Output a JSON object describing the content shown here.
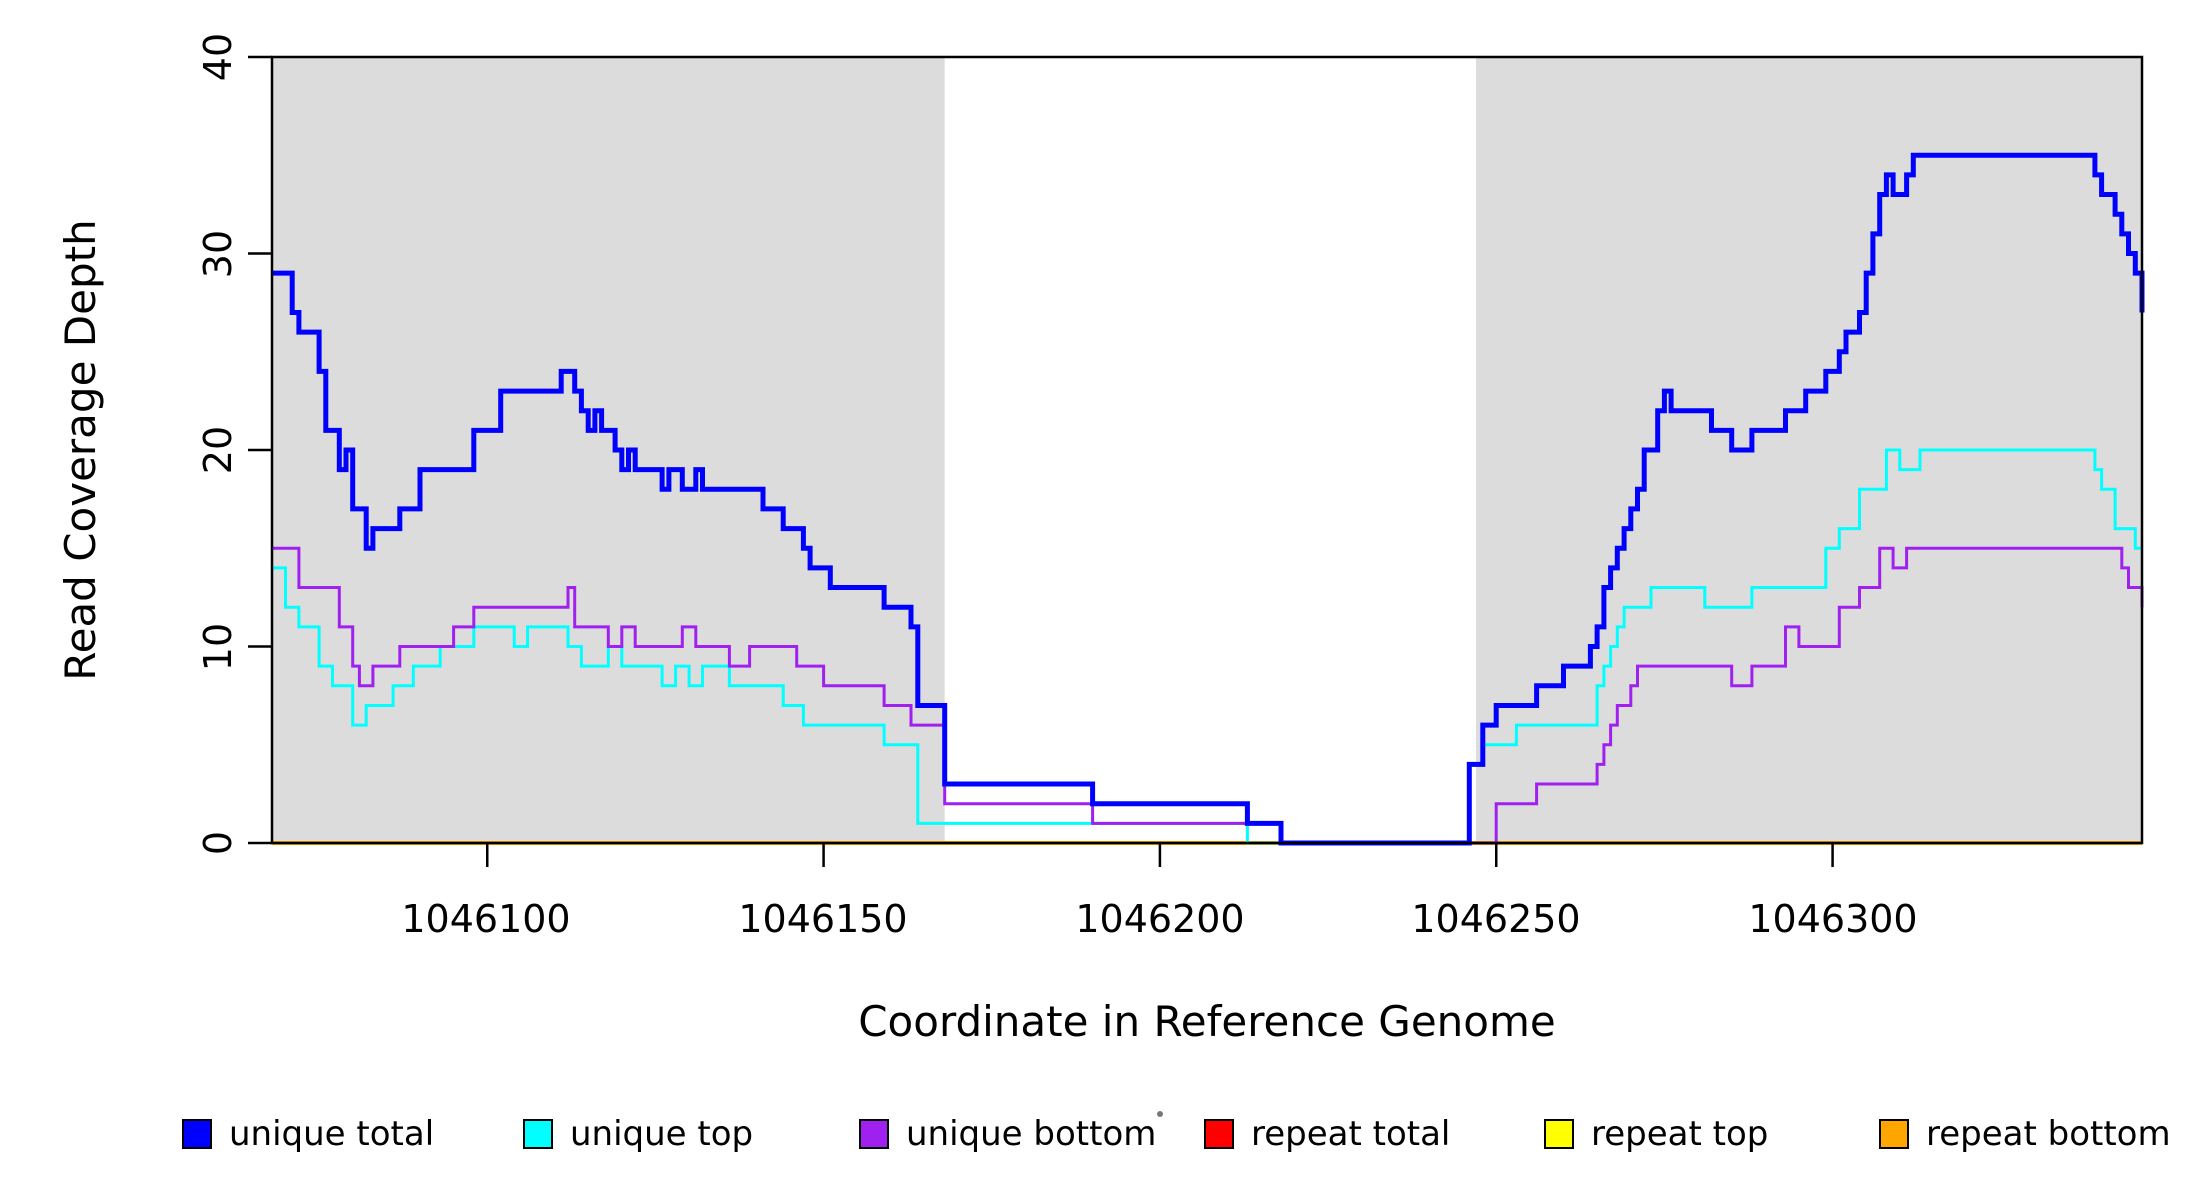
{
  "figure": {
    "y_axis": {
      "label": "Read Coverage Depth",
      "tick_labels": [
        "0",
        "10",
        "20",
        "30",
        "40"
      ],
      "tick_values": [
        0,
        10,
        20,
        30,
        40
      ],
      "range": [
        0,
        40
      ]
    },
    "x_axis": {
      "label": "Coordinate in Reference Genome",
      "tick_labels": [
        "1046100",
        "1046150",
        "1046200",
        "1046250",
        "1046300"
      ],
      "tick_values": [
        1046100,
        1046150,
        1046200,
        1046250,
        1046300
      ],
      "range": [
        1046068,
        1046346
      ]
    },
    "shaded_regions": [
      {
        "from": 1046068,
        "to": 1046168
      },
      {
        "from": 1046247,
        "to": 1046346
      }
    ],
    "shade_color": "#DCDCDC",
    "box_color": "#000000",
    "background_color": "#FFFFFF"
  },
  "legend": {
    "items": [
      {
        "label": "unique total",
        "color": "#0000FF"
      },
      {
        "label": "unique top",
        "color": "#00FFFF"
      },
      {
        "label": "unique bottom",
        "color": "#A020F0"
      },
      {
        "label": "repeat total",
        "color": "#FF0000"
      },
      {
        "label": "repeat top",
        "color": "#FFFF00"
      },
      {
        "label": "repeat bottom",
        "color": "#FFA500"
      }
    ]
  },
  "chart_data": {
    "type": "line",
    "subtype": "step-after",
    "title": "",
    "xlabel": "Coordinate in Reference Genome",
    "ylabel": "Read Coverage Depth",
    "xlim": [
      1046068,
      1046346
    ],
    "ylim": [
      0,
      40
    ],
    "grid": false,
    "legend_position": "bottom",
    "series": [
      {
        "name": "repeat total",
        "color": "#FF0000",
        "width": 4,
        "points": [
          [
            1046068,
            0
          ],
          [
            1046346,
            0
          ]
        ]
      },
      {
        "name": "repeat top",
        "color": "#FFFF00",
        "width": 4,
        "points": [
          [
            1046068,
            0
          ],
          [
            1046346,
            0
          ]
        ]
      },
      {
        "name": "repeat bottom",
        "color": "#FFA500",
        "width": 4,
        "points": [
          [
            1046068,
            0
          ],
          [
            1046346,
            0
          ]
        ]
      },
      {
        "name": "unique top",
        "color": "#00FFFF",
        "width": 3,
        "points": [
          [
            1046068,
            14
          ],
          [
            1046070,
            12
          ],
          [
            1046072,
            11
          ],
          [
            1046075,
            9
          ],
          [
            1046077,
            8
          ],
          [
            1046080,
            6
          ],
          [
            1046082,
            7
          ],
          [
            1046086,
            8
          ],
          [
            1046089,
            9
          ],
          [
            1046093,
            10
          ],
          [
            1046098,
            11
          ],
          [
            1046104,
            10
          ],
          [
            1046106,
            11
          ],
          [
            1046112,
            10
          ],
          [
            1046114,
            9
          ],
          [
            1046118,
            10
          ],
          [
            1046120,
            9
          ],
          [
            1046126,
            8
          ],
          [
            1046128,
            9
          ],
          [
            1046130,
            8
          ],
          [
            1046132,
            9
          ],
          [
            1046136,
            8
          ],
          [
            1046144,
            7
          ],
          [
            1046147,
            6
          ],
          [
            1046159,
            5
          ],
          [
            1046164,
            1
          ],
          [
            1046213,
            0
          ],
          [
            1046246,
            4
          ],
          [
            1046248,
            5
          ],
          [
            1046253,
            6
          ],
          [
            1046265,
            8
          ],
          [
            1046266,
            9
          ],
          [
            1046267,
            10
          ],
          [
            1046268,
            11
          ],
          [
            1046269,
            12
          ],
          [
            1046273,
            13
          ],
          [
            1046281,
            12
          ],
          [
            1046288,
            13
          ],
          [
            1046299,
            15
          ],
          [
            1046301,
            16
          ],
          [
            1046304,
            18
          ],
          [
            1046308,
            20
          ],
          [
            1046310,
            19
          ],
          [
            1046313,
            20
          ],
          [
            1046339,
            19
          ],
          [
            1046340,
            18
          ],
          [
            1046342,
            16
          ],
          [
            1046345,
            15
          ],
          [
            1046346,
            15
          ]
        ]
      },
      {
        "name": "unique bottom",
        "color": "#A020F0",
        "width": 3,
        "points": [
          [
            1046068,
            15
          ],
          [
            1046072,
            13
          ],
          [
            1046078,
            11
          ],
          [
            1046080,
            9
          ],
          [
            1046081,
            8
          ],
          [
            1046083,
            9
          ],
          [
            1046087,
            10
          ],
          [
            1046095,
            11
          ],
          [
            1046098,
            12
          ],
          [
            1046110,
            12
          ],
          [
            1046112,
            13
          ],
          [
            1046113,
            11
          ],
          [
            1046118,
            10
          ],
          [
            1046120,
            11
          ],
          [
            1046122,
            10
          ],
          [
            1046129,
            11
          ],
          [
            1046131,
            10
          ],
          [
            1046136,
            9
          ],
          [
            1046139,
            10
          ],
          [
            1046146,
            9
          ],
          [
            1046150,
            8
          ],
          [
            1046159,
            7
          ],
          [
            1046163,
            6
          ],
          [
            1046168,
            2
          ],
          [
            1046190,
            1
          ],
          [
            1046218,
            0
          ],
          [
            1046250,
            2
          ],
          [
            1046256,
            3
          ],
          [
            1046265,
            4
          ],
          [
            1046266,
            5
          ],
          [
            1046267,
            6
          ],
          [
            1046268,
            7
          ],
          [
            1046270,
            8
          ],
          [
            1046271,
            9
          ],
          [
            1046285,
            8
          ],
          [
            1046288,
            9
          ],
          [
            1046293,
            11
          ],
          [
            1046295,
            10
          ],
          [
            1046301,
            12
          ],
          [
            1046304,
            13
          ],
          [
            1046307,
            15
          ],
          [
            1046309,
            14
          ],
          [
            1046311,
            15
          ],
          [
            1046343,
            14
          ],
          [
            1046344,
            13
          ],
          [
            1046346,
            12
          ]
        ]
      },
      {
        "name": "unique total",
        "color": "#0000FF",
        "width": 5,
        "points": [
          [
            1046068,
            29
          ],
          [
            1046071,
            27
          ],
          [
            1046072,
            26
          ],
          [
            1046075,
            24
          ],
          [
            1046076,
            21
          ],
          [
            1046078,
            19
          ],
          [
            1046079,
            20
          ],
          [
            1046080,
            17
          ],
          [
            1046082,
            15
          ],
          [
            1046083,
            16
          ],
          [
            1046087,
            17
          ],
          [
            1046090,
            19
          ],
          [
            1046098,
            21
          ],
          [
            1046102,
            23
          ],
          [
            1046111,
            24
          ],
          [
            1046113,
            23
          ],
          [
            1046114,
            22
          ],
          [
            1046115,
            21
          ],
          [
            1046116,
            22
          ],
          [
            1046117,
            21
          ],
          [
            1046119,
            20
          ],
          [
            1046120,
            19
          ],
          [
            1046121,
            20
          ],
          [
            1046122,
            19
          ],
          [
            1046126,
            18
          ],
          [
            1046127,
            19
          ],
          [
            1046129,
            18
          ],
          [
            1046131,
            19
          ],
          [
            1046132,
            18
          ],
          [
            1046141,
            17
          ],
          [
            1046144,
            16
          ],
          [
            1046147,
            15
          ],
          [
            1046148,
            14
          ],
          [
            1046151,
            13
          ],
          [
            1046159,
            12
          ],
          [
            1046163,
            11
          ],
          [
            1046164,
            7
          ],
          [
            1046168,
            3
          ],
          [
            1046190,
            2
          ],
          [
            1046213,
            1
          ],
          [
            1046218,
            0
          ],
          [
            1046246,
            4
          ],
          [
            1046248,
            6
          ],
          [
            1046250,
            7
          ],
          [
            1046256,
            8
          ],
          [
            1046260,
            9
          ],
          [
            1046264,
            10
          ],
          [
            1046265,
            11
          ],
          [
            1046266,
            13
          ],
          [
            1046267,
            14
          ],
          [
            1046268,
            15
          ],
          [
            1046269,
            16
          ],
          [
            1046270,
            17
          ],
          [
            1046271,
            18
          ],
          [
            1046272,
            20
          ],
          [
            1046274,
            22
          ],
          [
            1046275,
            23
          ],
          [
            1046276,
            22
          ],
          [
            1046282,
            21
          ],
          [
            1046285,
            20
          ],
          [
            1046288,
            21
          ],
          [
            1046293,
            22
          ],
          [
            1046296,
            23
          ],
          [
            1046299,
            24
          ],
          [
            1046301,
            25
          ],
          [
            1046302,
            26
          ],
          [
            1046304,
            27
          ],
          [
            1046305,
            29
          ],
          [
            1046306,
            31
          ],
          [
            1046307,
            33
          ],
          [
            1046308,
            34
          ],
          [
            1046309,
            33
          ],
          [
            1046311,
            34
          ],
          [
            1046312,
            35
          ],
          [
            1046339,
            34
          ],
          [
            1046340,
            33
          ],
          [
            1046342,
            32
          ],
          [
            1046343,
            31
          ],
          [
            1046344,
            30
          ],
          [
            1046345,
            29
          ],
          [
            1046346,
            27
          ]
        ]
      }
    ]
  }
}
